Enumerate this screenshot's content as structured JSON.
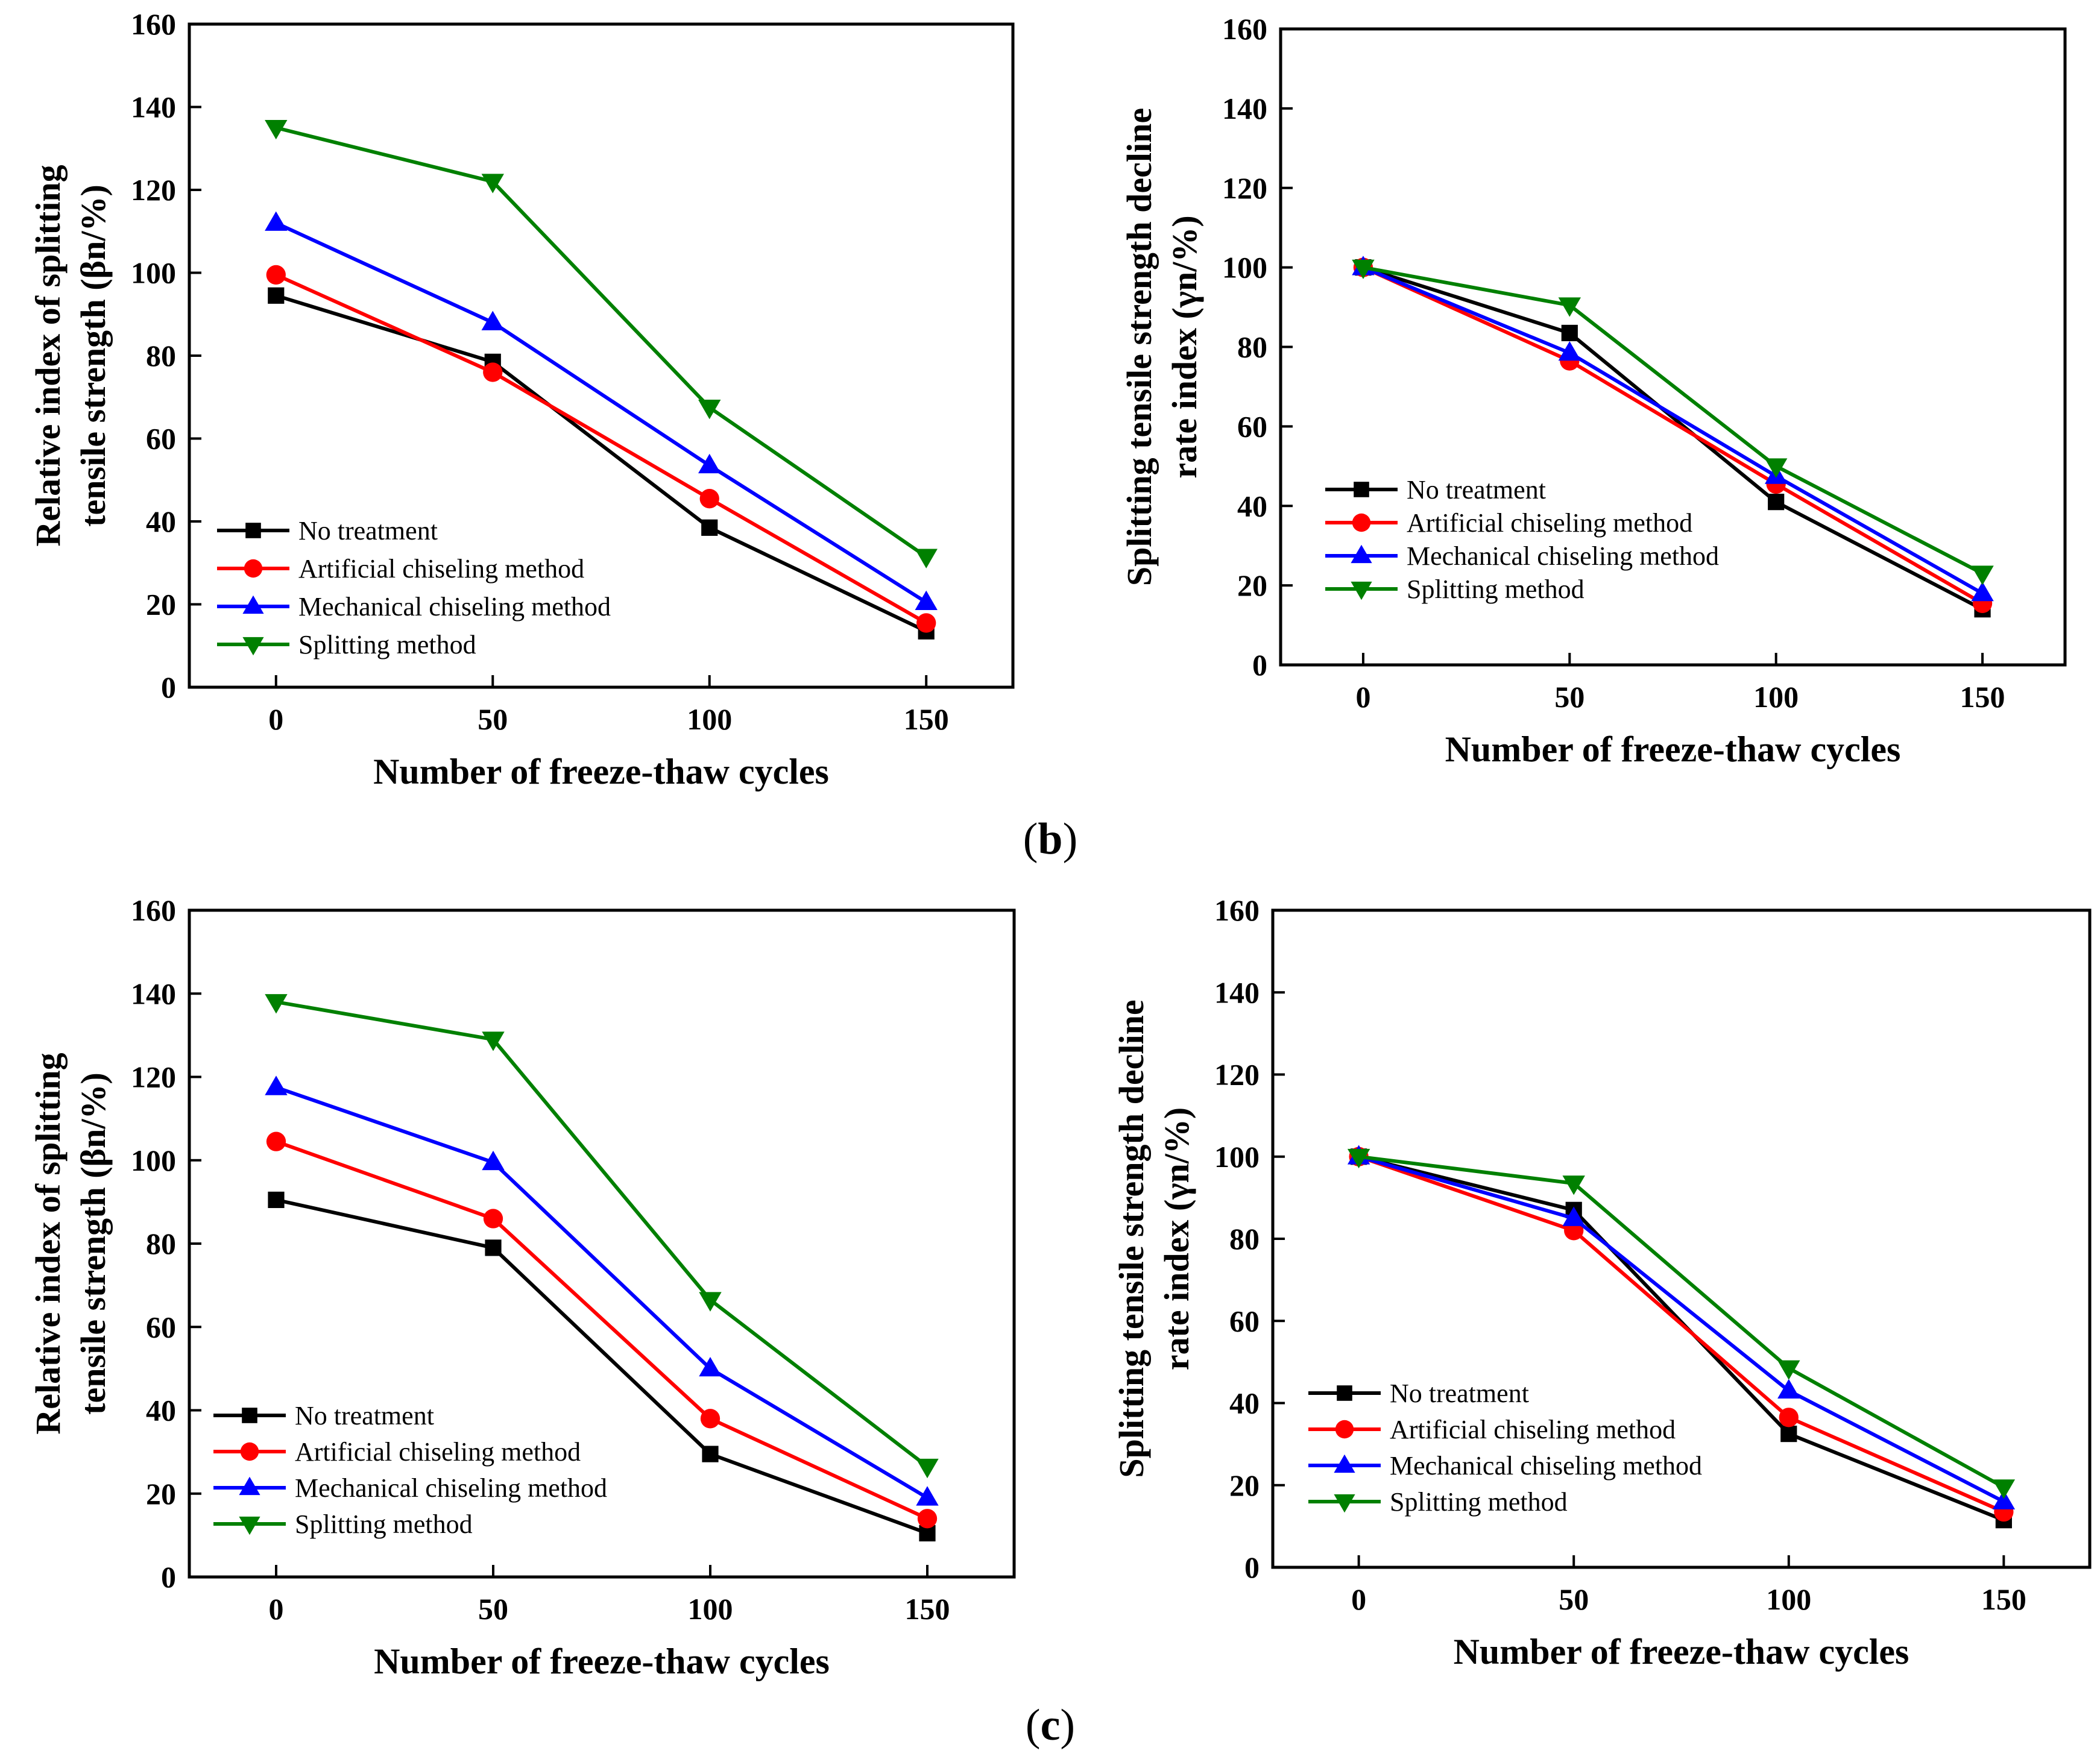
{
  "figure_labels": [
    "b",
    "c"
  ],
  "chart_data": [
    {
      "type": "line",
      "panel": "b-left",
      "xlabel": "Number of freeze-thaw cycles",
      "ylabel_lines": [
        "Relative index of splitting",
        "tensile strength (βn/%)"
      ],
      "x": [
        0,
        50,
        100,
        150
      ],
      "xlim": [
        -20,
        170
      ],
      "ylim": [
        0,
        160
      ],
      "xticks": [
        0,
        50,
        100,
        150
      ],
      "yticks": [
        0,
        20,
        40,
        60,
        80,
        100,
        120,
        140,
        160
      ],
      "grid": false,
      "legend_position": "bottom-left",
      "series": [
        {
          "name": "No treatment",
          "values": [
            94.5,
            78.5,
            38.5,
            13.5
          ],
          "color": "#000000",
          "marker": "square"
        },
        {
          "name": "Artificial chiseling method",
          "values": [
            99.5,
            76,
            45.5,
            15.5
          ],
          "color": "#ff0000",
          "marker": "circle"
        },
        {
          "name": "Mechanical chiseling method",
          "values": [
            112,
            88,
            53.5,
            20.5
          ],
          "color": "#0000ff",
          "marker": "triangle-up"
        },
        {
          "name": "Splitting method",
          "values": [
            135,
            122,
            67.5,
            31.5
          ],
          "color": "#008000",
          "marker": "triangle-down"
        }
      ]
    },
    {
      "type": "line",
      "panel": "b-right",
      "xlabel": "Number of freeze-thaw cycles",
      "ylabel_lines": [
        "Splitting tensile strength decline",
        "rate index (γn/%)"
      ],
      "x": [
        0,
        50,
        100,
        150
      ],
      "xlim": [
        -20,
        170
      ],
      "ylim": [
        0,
        160
      ],
      "xticks": [
        0,
        50,
        100,
        150
      ],
      "yticks": [
        0,
        20,
        40,
        60,
        80,
        100,
        120,
        140,
        160
      ],
      "grid": false,
      "legend_position": "bottom-left",
      "series": [
        {
          "name": "No treatment",
          "values": [
            100,
            83.5,
            41,
            14
          ],
          "color": "#000000",
          "marker": "square"
        },
        {
          "name": "Artificial chiseling method",
          "values": [
            100,
            76.5,
            45.5,
            15.5
          ],
          "color": "#ff0000",
          "marker": "circle"
        },
        {
          "name": "Mechanical chiseling method",
          "values": [
            100,
            78.5,
            47.5,
            18
          ],
          "color": "#0000ff",
          "marker": "triangle-up"
        },
        {
          "name": "Splitting method",
          "values": [
            100,
            90.5,
            50,
            23
          ],
          "color": "#008000",
          "marker": "triangle-down"
        }
      ]
    },
    {
      "type": "line",
      "panel": "c-left",
      "xlabel": "Number of freeze-thaw cycles",
      "ylabel_lines": [
        "Relative index of splitting",
        "tensile strength (βn/%)"
      ],
      "x": [
        0,
        50,
        100,
        150
      ],
      "xlim": [
        -20,
        170
      ],
      "ylim": [
        0,
        160
      ],
      "xticks": [
        0,
        50,
        100,
        150
      ],
      "yticks": [
        0,
        20,
        40,
        60,
        80,
        100,
        120,
        140,
        160
      ],
      "grid": false,
      "legend_position": "bottom-left",
      "series": [
        {
          "name": "No treatment",
          "values": [
            90.5,
            79,
            29.5,
            10.5
          ],
          "color": "#000000",
          "marker": "square"
        },
        {
          "name": "Artificial chiseling method",
          "values": [
            104.5,
            86,
            38,
            14
          ],
          "color": "#ff0000",
          "marker": "circle"
        },
        {
          "name": "Mechanical chiseling method",
          "values": [
            117.5,
            99.5,
            50,
            19
          ],
          "color": "#0000ff",
          "marker": "triangle-up"
        },
        {
          "name": "Splitting method",
          "values": [
            138,
            129,
            66.5,
            26.5
          ],
          "color": "#008000",
          "marker": "triangle-down"
        }
      ]
    },
    {
      "type": "line",
      "panel": "c-right",
      "xlabel": "Number of freeze-thaw cycles",
      "ylabel_lines": [
        "Splitting tensile strength decline",
        "rate index (γn/%)"
      ],
      "x": [
        0,
        50,
        100,
        150
      ],
      "xlim": [
        -20,
        170
      ],
      "ylim": [
        0,
        160
      ],
      "xticks": [
        0,
        50,
        100,
        150
      ],
      "yticks": [
        0,
        20,
        40,
        60,
        80,
        100,
        120,
        140,
        160
      ],
      "grid": false,
      "legend_position": "bottom-left",
      "series": [
        {
          "name": "No treatment",
          "values": [
            100,
            87,
            32.5,
            11.5
          ],
          "color": "#000000",
          "marker": "square"
        },
        {
          "name": "Artificial chiseling method",
          "values": [
            100,
            82,
            36.5,
            13.5
          ],
          "color": "#ff0000",
          "marker": "circle"
        },
        {
          "name": "Mechanical chiseling method",
          "values": [
            100,
            85,
            43,
            16
          ],
          "color": "#0000ff",
          "marker": "triangle-up"
        },
        {
          "name": "Splitting method",
          "values": [
            100,
            93.5,
            48.5,
            19.5
          ],
          "color": "#008000",
          "marker": "triangle-down"
        }
      ]
    }
  ]
}
